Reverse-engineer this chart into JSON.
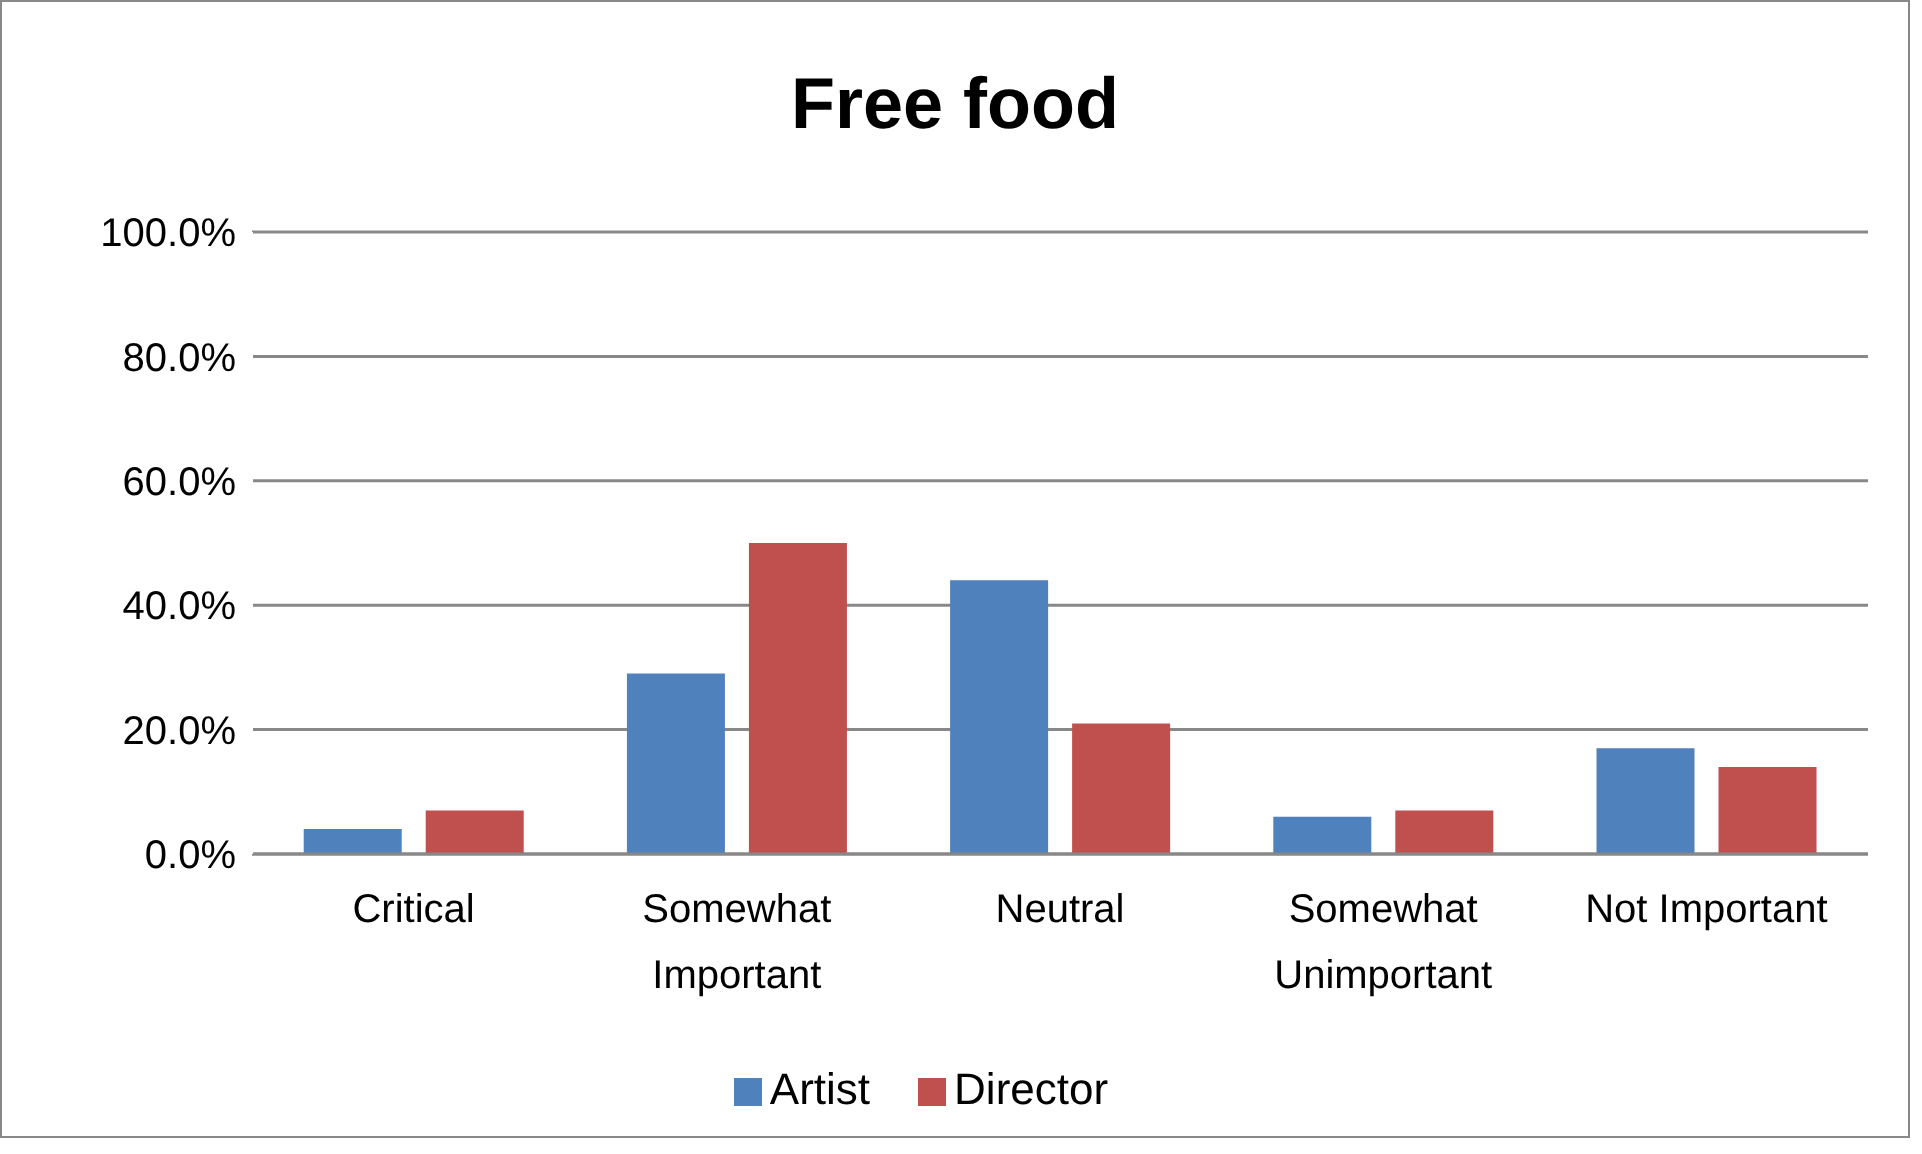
{
  "chart_data": {
    "type": "bar",
    "title": "Free food",
    "categories": [
      "Critical",
      "Somewhat Important",
      "Neutral",
      "Somewhat Unimportant",
      "Not Important"
    ],
    "series": [
      {
        "name": "Artist",
        "color": "#4f81bd",
        "values": [
          4,
          29,
          44,
          6,
          17
        ]
      },
      {
        "name": "Director",
        "color": "#c0504d",
        "values": [
          7,
          50,
          21,
          7,
          14
        ]
      }
    ],
    "ylim": [
      0,
      100
    ],
    "yticks": [
      {
        "value": 0,
        "label": "0.0%"
      },
      {
        "value": 20,
        "label": "20.0%"
      },
      {
        "value": 40,
        "label": "40.0%"
      },
      {
        "value": 60,
        "label": "60.0%"
      },
      {
        "value": 80,
        "label": "80.0%"
      },
      {
        "value": 100,
        "label": "100.0%"
      }
    ],
    "grid": "y",
    "legend": "bottom"
  }
}
